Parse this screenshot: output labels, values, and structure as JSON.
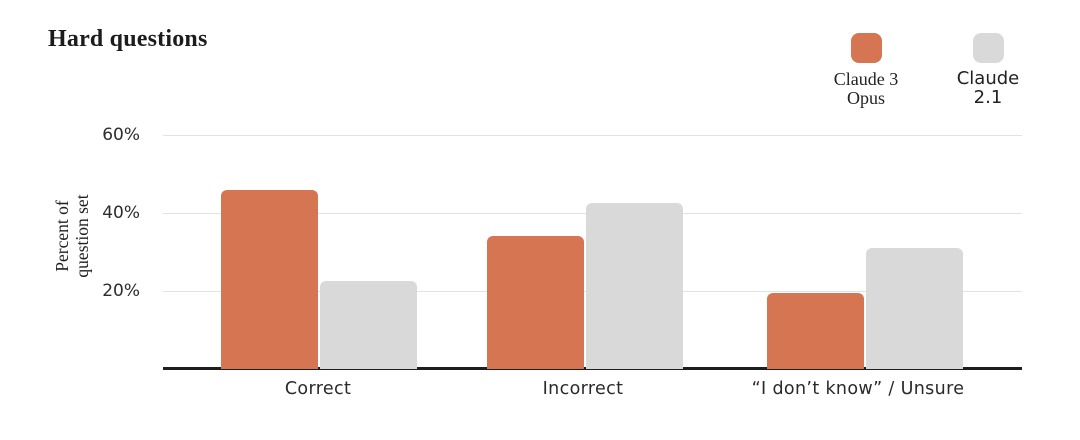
{
  "title": "Hard questions",
  "colors": {
    "opus_orange": "#D57552",
    "claude21_gray": "#D9D9D9",
    "axis": "#1E1E1E",
    "gridline": "#E2E2E2"
  },
  "legend": [
    {
      "line1": "Claude 3",
      "line2": "Opus",
      "color": "#D57552",
      "font": "serif"
    },
    {
      "line1": "Claude",
      "line2": "2.1",
      "color": "#D9D9D9",
      "font": "sans"
    }
  ],
  "chart_data": {
    "type": "bar",
    "title": "Hard questions",
    "categories": [
      "Correct",
      "Incorrect",
      "“I don’t know” / Unsure"
    ],
    "series": [
      {
        "name": "Claude 3 Opus",
        "color": "#D57552",
        "values": [
          46,
          34,
          19.5
        ]
      },
      {
        "name": "Claude 2.1",
        "color": "#D9D9D9",
        "values": [
          22.5,
          42.5,
          31
        ]
      }
    ],
    "xlabel": "",
    "ylabel": "Percent of question set",
    "ylabel_lines": [
      "Percent of",
      "question set"
    ],
    "yticks": [
      20,
      40,
      60
    ],
    "ytick_labels": [
      "20%",
      "40%",
      "60%"
    ],
    "ylim": [
      0,
      64
    ],
    "grid": true,
    "legend_position": "top-right"
  }
}
